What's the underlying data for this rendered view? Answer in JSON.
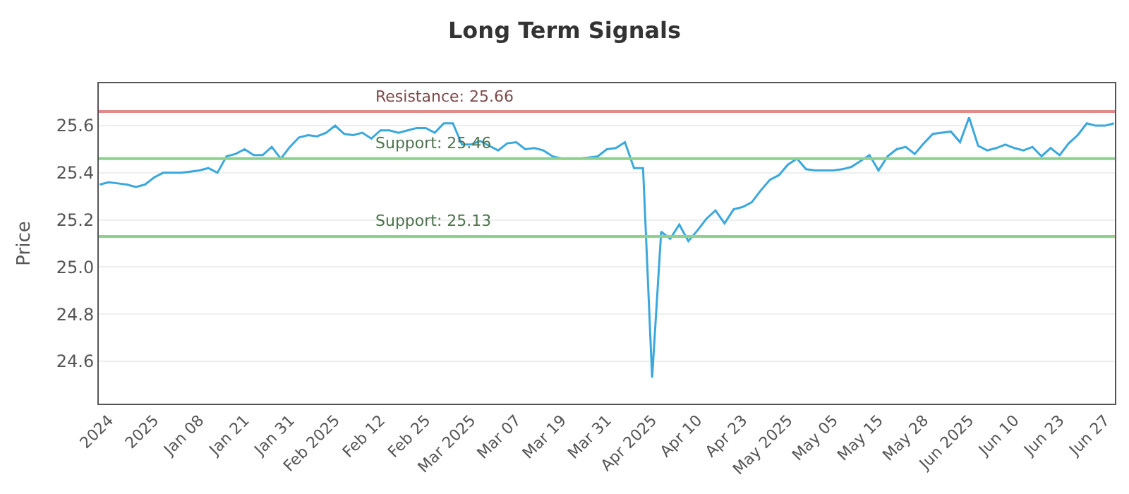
{
  "chart_data": {
    "type": "line",
    "title": "Long Term Signals",
    "ylabel": "Price",
    "categories": [
      null,
      "2024",
      null,
      null,
      null,
      null,
      "2025",
      null,
      null,
      null,
      null,
      "Jan 08",
      null,
      null,
      null,
      null,
      "Jan 21",
      null,
      null,
      null,
      null,
      "Jan 31",
      null,
      null,
      null,
      null,
      "Feb 2025",
      null,
      null,
      null,
      null,
      "Feb 12",
      null,
      null,
      null,
      null,
      "Feb 25",
      null,
      null,
      null,
      null,
      "Mar 2025",
      null,
      null,
      null,
      null,
      "Mar 07",
      null,
      null,
      null,
      null,
      "Mar 19",
      null,
      null,
      null,
      null,
      "Mar 31",
      null,
      null,
      null,
      null,
      "Apr 2025",
      null,
      null,
      null,
      null,
      "Apr 10",
      null,
      null,
      null,
      null,
      "Apr 23",
      null,
      null,
      null,
      null,
      "May 2025",
      null,
      null,
      null,
      null,
      "May 05",
      null,
      null,
      null,
      null,
      "May 15",
      null,
      null,
      null,
      null,
      "May 28",
      null,
      null,
      null,
      null,
      "Jun 2025",
      null,
      null,
      null,
      null,
      "Jun 10",
      null,
      null,
      null,
      null,
      "Jun 23",
      null,
      null,
      null,
      null,
      "Jun 27",
      null
    ],
    "series": [
      {
        "color": "#3aa8dc",
        "values": [
          25.35,
          25.36,
          25.355,
          25.35,
          25.34,
          25.35,
          25.38,
          25.4,
          25.4,
          25.4,
          25.405,
          25.41,
          25.42,
          25.4,
          25.47,
          25.48,
          25.5,
          25.475,
          25.475,
          25.51,
          25.46,
          25.51,
          25.55,
          25.56,
          25.555,
          25.57,
          25.6,
          25.565,
          25.56,
          25.57,
          25.545,
          25.58,
          25.58,
          25.57,
          25.58,
          25.59,
          25.59,
          25.57,
          25.61,
          25.61,
          25.52,
          25.52,
          25.535,
          25.515,
          25.495,
          25.525,
          25.53,
          25.5,
          25.505,
          25.495,
          25.47,
          25.46,
          25.46,
          25.46,
          25.465,
          25.47,
          25.5,
          25.505,
          25.53,
          25.42,
          25.42,
          24.53,
          25.15,
          25.12,
          25.18,
          25.11,
          25.155,
          25.205,
          25.24,
          25.185,
          25.245,
          25.255,
          25.275,
          25.325,
          25.37,
          25.39,
          25.435,
          25.46,
          25.415,
          25.41,
          25.41,
          25.41,
          25.415,
          25.425,
          25.45,
          25.475,
          25.41,
          25.47,
          25.5,
          25.51,
          25.48,
          25.525,
          25.565,
          25.57,
          25.575,
          25.53,
          25.635,
          25.515,
          25.495,
          25.505,
          25.52,
          25.505,
          25.495,
          25.51,
          25.47,
          25.505,
          25.475,
          25.525,
          25.56,
          25.61,
          25.6,
          25.6,
          25.61
        ]
      }
    ],
    "ylim": [
      24.42,
      25.78
    ],
    "yticks": [
      {
        "value": 24.6,
        "label": "24.6"
      },
      {
        "value": 24.8,
        "label": "24.8"
      },
      {
        "value": 25.0,
        "label": "25.0"
      },
      {
        "value": 25.2,
        "label": "25.2"
      },
      {
        "value": 25.4,
        "label": "25.4"
      },
      {
        "value": 25.6,
        "label": "25.6"
      }
    ],
    "grid": "y",
    "marker": "none",
    "line_style": "solid",
    "ref_lines": [
      {
        "axis": "y",
        "value": 25.66,
        "label": "Resistance: 25.66",
        "color": "#e08a8a"
      },
      {
        "axis": "y",
        "value": 25.46,
        "label": "Support: 25.46",
        "color": "#8fd08f"
      },
      {
        "axis": "y",
        "value": 25.13,
        "label": "Support: 25.13",
        "color": "#8fd08f"
      }
    ]
  }
}
